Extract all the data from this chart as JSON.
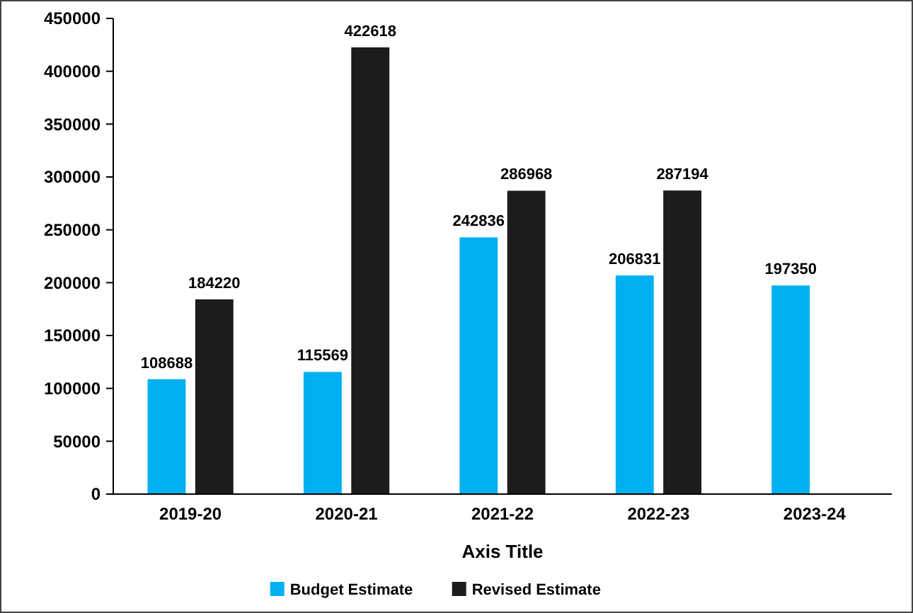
{
  "chart_data": {
    "type": "bar",
    "xlabel": "Axis Title",
    "categories": [
      "2019-20",
      "2020-21",
      "2021-22",
      "2022-23",
      "2023-24"
    ],
    "series": [
      {
        "name": "Budget Estimate",
        "color": "#00b0f0",
        "values": [
          108688,
          115569,
          242836,
          206831,
          197350
        ]
      },
      {
        "name": "Revised Estimate",
        "color": "#1c1c1c",
        "values": [
          184220,
          422618,
          286968,
          287194,
          null
        ]
      }
    ],
    "ylim": [
      0,
      450000
    ],
    "yticks": [
      0,
      50000,
      100000,
      150000,
      200000,
      250000,
      300000,
      350000,
      400000,
      450000
    ],
    "grid": false,
    "legend": "bottom",
    "data_labels": true
  }
}
